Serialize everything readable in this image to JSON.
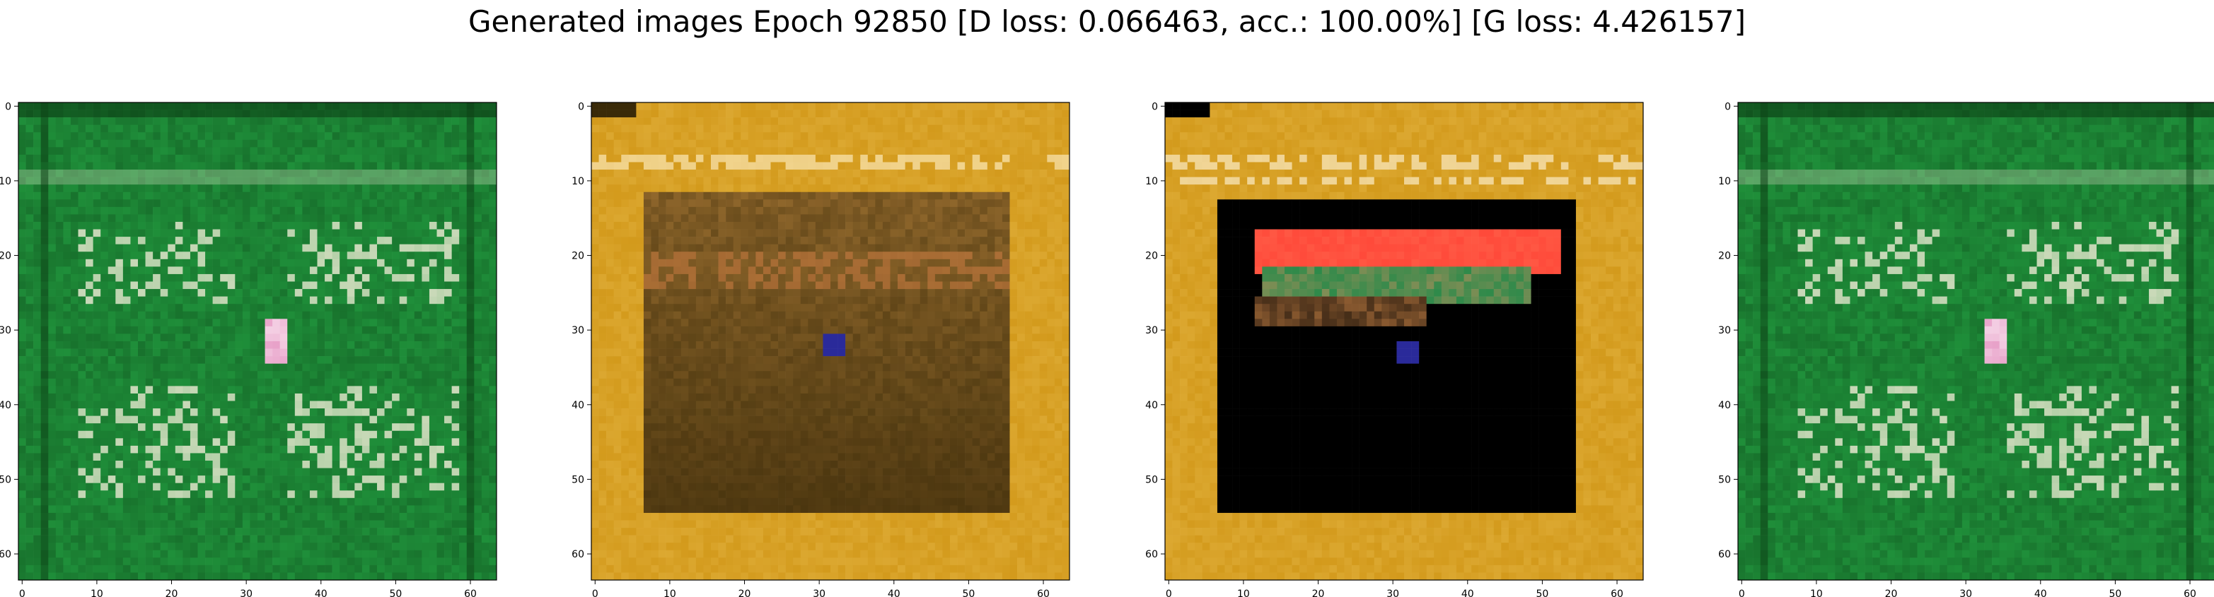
{
  "figure": {
    "title": "Generated images Epoch 92850 [D loss: 0.066463, acc.: 100.00%] [G loss: 4.426157]"
  },
  "chart_data": [
    {
      "type": "heatmap",
      "title": "",
      "xlabel": "",
      "ylabel": "",
      "xlim": [
        -0.5,
        63.5
      ],
      "ylim": [
        63.5,
        -0.5
      ],
      "xticks": [
        0,
        10,
        20,
        30,
        40,
        50,
        60
      ],
      "yticks": [
        0,
        10,
        20,
        30,
        40,
        50,
        60
      ],
      "xtick_labels": [
        "0",
        "10",
        "20",
        "30",
        "40",
        "50",
        "60"
      ],
      "ytick_labels": [
        "0",
        "10",
        "20",
        "30",
        "40",
        "50",
        "60"
      ],
      "image": "green",
      "palette": {
        "background": "#1f8f3a",
        "dark": "#0b3d14",
        "light": "#c9d9b8",
        "accent": "#e8a0c8"
      }
    },
    {
      "type": "heatmap",
      "title": "",
      "xlabel": "",
      "ylabel": "",
      "xlim": [
        -0.5,
        63.5
      ],
      "ylim": [
        63.5,
        -0.5
      ],
      "xticks": [
        0,
        10,
        20,
        30,
        40,
        50,
        60
      ],
      "yticks": [
        0,
        10,
        20,
        30,
        40,
        50,
        60
      ],
      "xtick_labels": [
        "0",
        "10",
        "20",
        "30",
        "40",
        "50",
        "60"
      ],
      "ytick_labels": [
        "0",
        "10",
        "20",
        "30",
        "40",
        "50",
        "60"
      ],
      "image": "gold-muddy",
      "palette": {
        "background": "#d39a1c",
        "dark": "#3a2a08",
        "light": "#f0c860",
        "accent": "#2a2a9a"
      }
    },
    {
      "type": "heatmap",
      "title": "",
      "xlabel": "",
      "ylabel": "",
      "xlim": [
        -0.5,
        63.5
      ],
      "ylim": [
        63.5,
        -0.5
      ],
      "xticks": [
        0,
        10,
        20,
        30,
        40,
        50,
        60
      ],
      "yticks": [
        0,
        10,
        20,
        30,
        40,
        50,
        60
      ],
      "xtick_labels": [
        "0",
        "10",
        "20",
        "30",
        "40",
        "50",
        "60"
      ],
      "ytick_labels": [
        "0",
        "10",
        "20",
        "30",
        "40",
        "50",
        "60"
      ],
      "image": "gold-black",
      "palette": {
        "background": "#d39a1c",
        "dark": "#000000",
        "light": "#f0c860",
        "accent": "#ff4a3a"
      }
    },
    {
      "type": "heatmap",
      "title": "",
      "xlabel": "",
      "ylabel": "",
      "xlim": [
        -0.5,
        63.5
      ],
      "ylim": [
        63.5,
        -0.5
      ],
      "xticks": [
        0,
        10,
        20,
        30,
        40,
        50,
        60
      ],
      "yticks": [
        0,
        10,
        20,
        30,
        40,
        50,
        60
      ],
      "xtick_labels": [
        "0",
        "10",
        "20",
        "30",
        "40",
        "50",
        "60"
      ],
      "ytick_labels": [
        "0",
        "10",
        "20",
        "30",
        "40",
        "50",
        "60"
      ],
      "image": "green",
      "palette": {
        "background": "#1f8f3a",
        "dark": "#0b3d14",
        "light": "#c9d9b8",
        "accent": "#e8a0c8"
      }
    }
  ]
}
